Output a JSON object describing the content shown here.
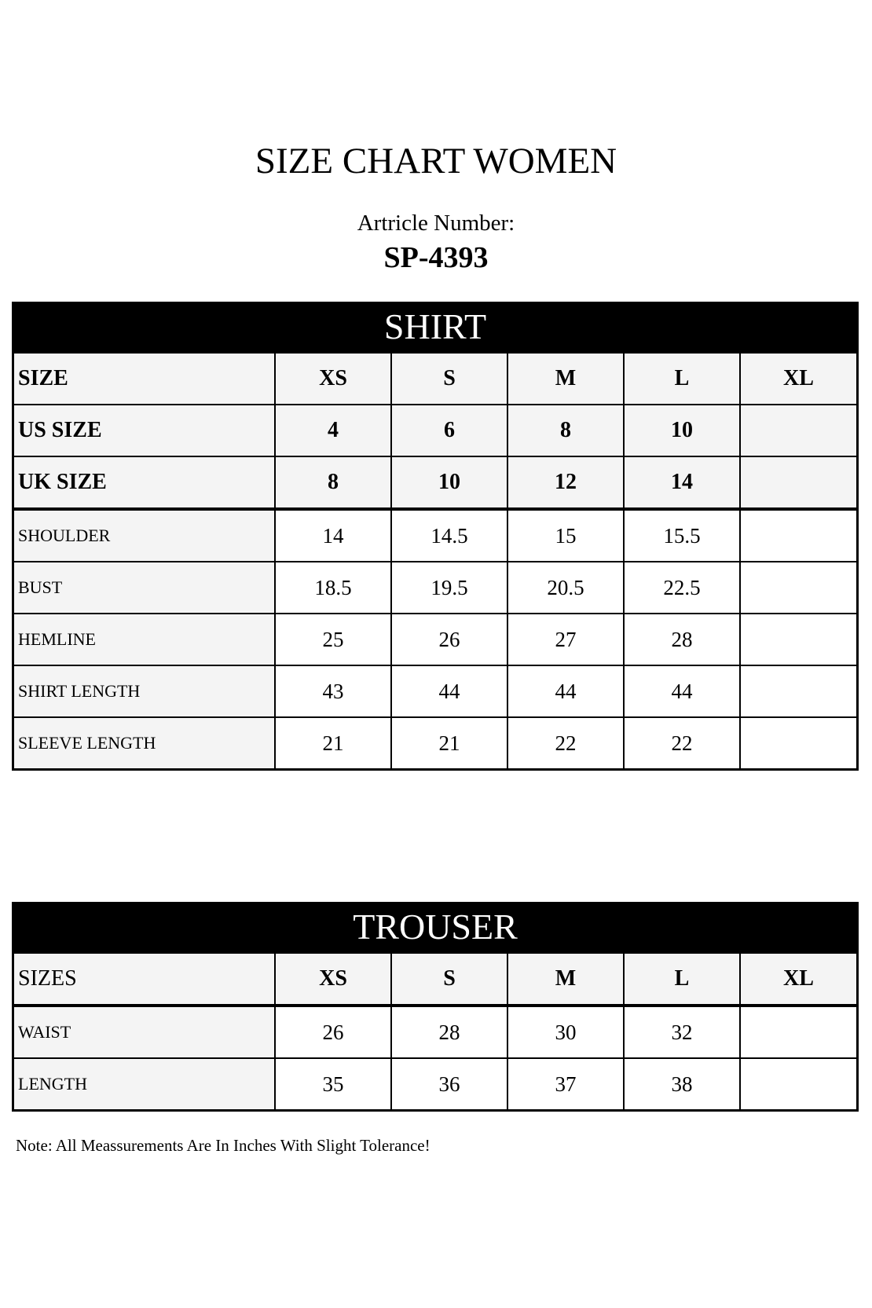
{
  "title": "SIZE CHART WOMEN",
  "article_label": "Artricle Number:",
  "article_number": "SP-4393",
  "shirt": {
    "heading": "SHIRT",
    "header": [
      "SIZE",
      "XS",
      "S",
      "M",
      "L",
      "XL"
    ],
    "bold_rows": [
      [
        "US SIZE",
        "4",
        "6",
        "8",
        "10",
        ""
      ],
      [
        "UK SIZE",
        "8",
        "10",
        "12",
        "14",
        ""
      ]
    ],
    "rows": [
      [
        "SHOULDER",
        "14",
        "14.5",
        "15",
        "15.5",
        ""
      ],
      [
        "BUST",
        "18.5",
        "19.5",
        "20.5",
        "22.5",
        ""
      ],
      [
        "HEMLINE",
        "25",
        "26",
        "27",
        "28",
        ""
      ],
      [
        "SHIRT LENGTH",
        "43",
        "44",
        "44",
        "44",
        ""
      ],
      [
        "SLEEVE LENGTH",
        "21",
        "21",
        "22",
        "22",
        ""
      ]
    ]
  },
  "trouser": {
    "heading": "TROUSER",
    "header": [
      "SIZES",
      "XS",
      "S",
      "M",
      "L",
      "XL"
    ],
    "rows": [
      [
        "WAIST",
        "26",
        "28",
        "30",
        "32",
        ""
      ],
      [
        "LENGTH",
        "35",
        "36",
        "37",
        "38",
        ""
      ]
    ]
  },
  "note": "Note: All Meassurements Are In Inches With Slight Tolerance!"
}
